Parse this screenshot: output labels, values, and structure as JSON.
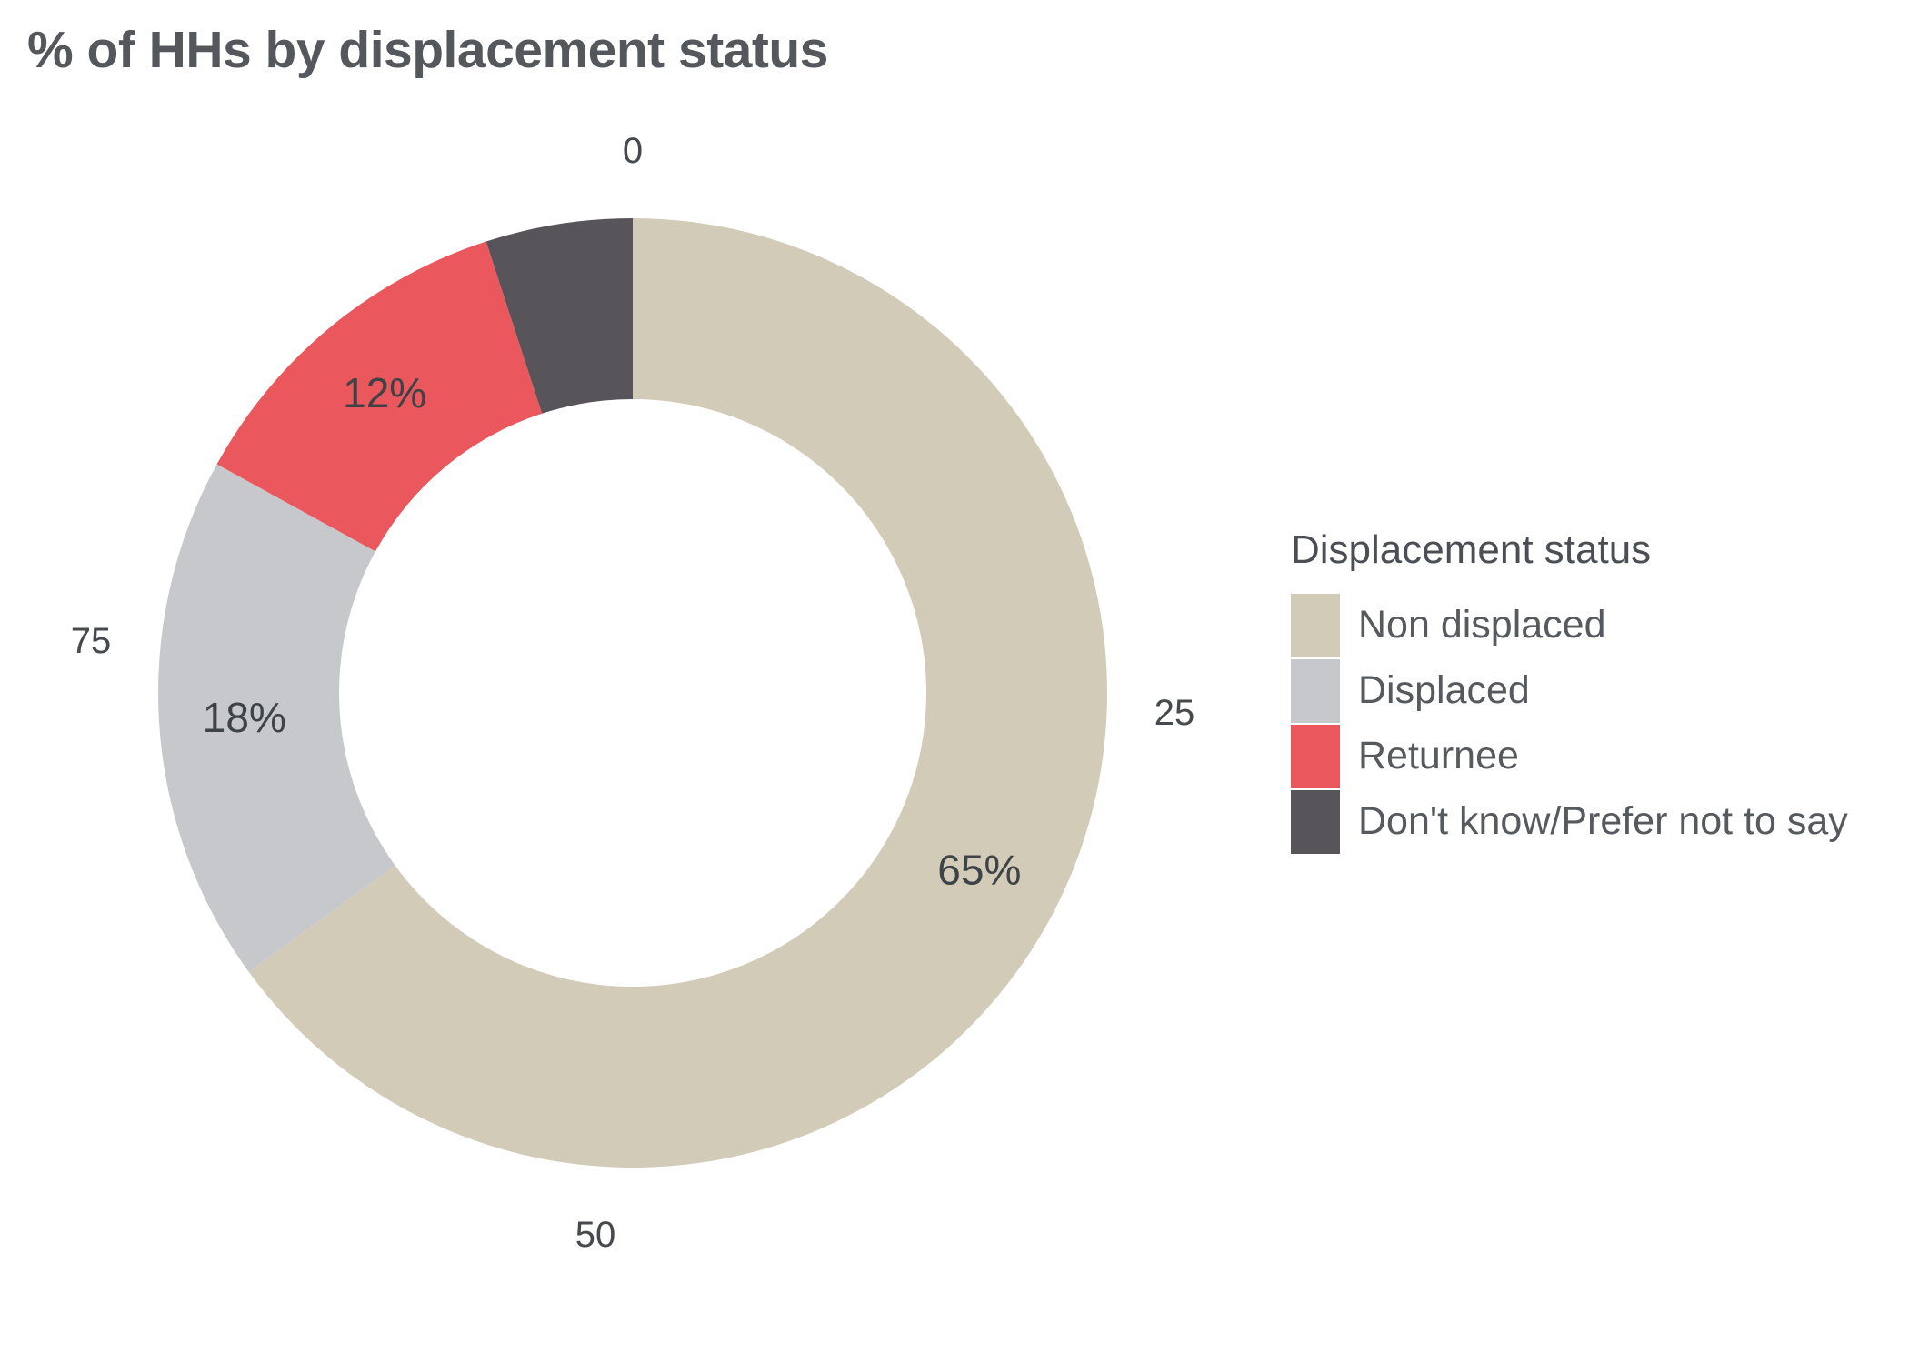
{
  "title": "% of HHs by displacement status",
  "legend": {
    "title": "Displacement status",
    "items": [
      {
        "label": "Non displaced",
        "color": "#d2cbb8"
      },
      {
        "label": "Displaced",
        "color": "#c6c8cb"
      },
      {
        "label": "Returnee",
        "color": "#ea575c"
      },
      {
        "label": "Don't know/Prefer not to say",
        "color": "#57555a"
      }
    ]
  },
  "chart_data": {
    "type": "pie",
    "subtype": "donut",
    "title": "% of HHs by displacement status",
    "categories": [
      "Non displaced",
      "Displaced",
      "Returnee",
      "Don't know/Prefer not to say"
    ],
    "values": [
      65,
      18,
      12,
      5
    ],
    "slice_labels": [
      "65%",
      "18%",
      "12%",
      ""
    ],
    "colors": [
      "#d2cbb8",
      "#c6c8cb",
      "#ea575c",
      "#57555a"
    ],
    "start_angle_deg": 0,
    "direction": "clockwise",
    "unit": "%",
    "total": 100,
    "polar_axis_ticks": [
      {
        "value": 0,
        "label": "0"
      },
      {
        "value": 25,
        "label": "25"
      },
      {
        "value": 50,
        "label": "50"
      },
      {
        "value": 75,
        "label": "75"
      }
    ],
    "legend_title": "Displacement status",
    "legend_position": "right",
    "background": "#ffffff"
  }
}
